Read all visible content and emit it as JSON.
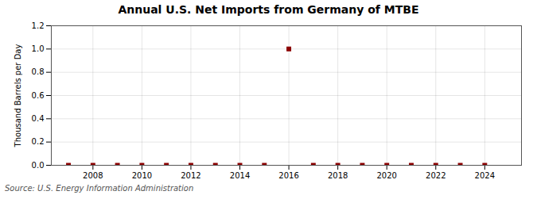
{
  "chart_data": {
    "type": "scatter",
    "title": "Annual U.S. Net Imports from Germany of MTBE",
    "ylabel": "Thousand Barrels per Day",
    "annotation": "Source: U.S. Energy Information Administration",
    "x": [
      2007,
      2008,
      2009,
      2010,
      2011,
      2012,
      2013,
      2014,
      2015,
      2016,
      2017,
      2018,
      2019,
      2020,
      2021,
      2022,
      2023,
      2024
    ],
    "values": [
      0.0,
      0.0,
      0.0,
      0.0,
      0.0,
      0.0,
      0.0,
      0.0,
      0.0,
      1.0,
      0.0,
      0.0,
      0.0,
      0.0,
      0.0,
      0.0,
      0.0,
      0.0
    ],
    "color": "#8b0000",
    "marker": "square",
    "xlim": [
      2006.3,
      2025.5
    ],
    "xticks": [
      2008,
      2010,
      2012,
      2014,
      2016,
      2018,
      2020,
      2022,
      2024
    ],
    "ylim": [
      0.0,
      1.2
    ],
    "yticks": [
      {
        "value": 0.0,
        "label": "0.0"
      },
      {
        "value": 0.2,
        "label": "0.2"
      },
      {
        "value": 0.4,
        "label": "0.4"
      },
      {
        "value": 0.6,
        "label": "0.6"
      },
      {
        "value": 0.8,
        "label": "0.8"
      },
      {
        "value": 1.0,
        "label": "1.0"
      },
      {
        "value": 1.2,
        "label": "1.2"
      }
    ],
    "grid": true
  }
}
